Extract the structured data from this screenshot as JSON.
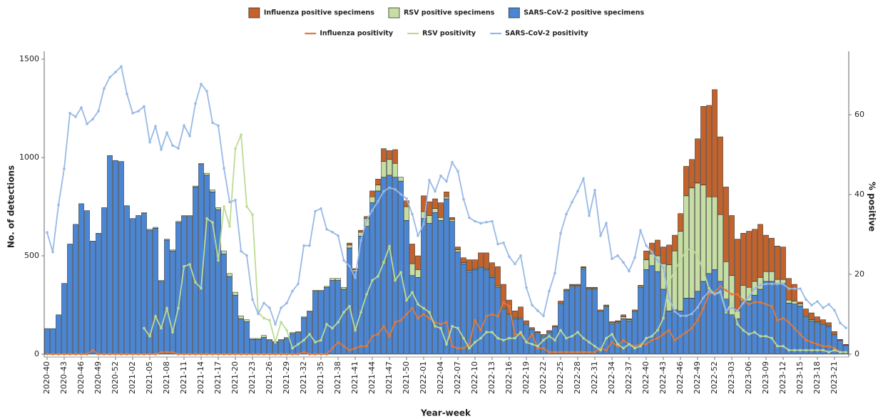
{
  "chart_data": {
    "type": "bar",
    "stacked": true,
    "x_label": "Year-week",
    "y_label": "No. of detections",
    "y2_label": "% positive",
    "ylim": [
      0,
      1540
    ],
    "yticks": [
      0,
      500,
      1000,
      1500
    ],
    "y2lim": [
      0,
      75.9
    ],
    "y2ticks": [
      0,
      20,
      40,
      60
    ],
    "categories": [
      "2020-40",
      null,
      null,
      "2020-43",
      null,
      null,
      "2020-46",
      null,
      null,
      "2020-49",
      null,
      null,
      "2020-52",
      null,
      null,
      "2021-02",
      null,
      null,
      "2021-05",
      null,
      null,
      "2021-08",
      null,
      null,
      "2021-11",
      null,
      null,
      "2021-14",
      null,
      null,
      "2021-17",
      null,
      null,
      "2021-20",
      null,
      null,
      "2021-23",
      null,
      null,
      "2021-26",
      null,
      null,
      "2021-29",
      null,
      null,
      "2021-32",
      null,
      null,
      "2021-35",
      null,
      null,
      "2021-38",
      null,
      null,
      "2021-41",
      null,
      null,
      "2021-44",
      null,
      null,
      "2021-47",
      null,
      null,
      "2021-50",
      null,
      null,
      "2022-01",
      null,
      null,
      "2022-04",
      null,
      null,
      "2022-07",
      null,
      null,
      "2022-10",
      null,
      null,
      "2022-13",
      null,
      null,
      "2022-16",
      null,
      null,
      "2022-19",
      null,
      null,
      "2022-22",
      null,
      null,
      "2022-25",
      null,
      null,
      "2022-28",
      null,
      null,
      "2022-31",
      null,
      null,
      "2022-34",
      null,
      null,
      "2022-37",
      null,
      null,
      "2022-40",
      null,
      null,
      "2022-43",
      null,
      null,
      "2022-46",
      null,
      null,
      "2022-49",
      null,
      null,
      "2022-52",
      null,
      null,
      "2023-03",
      null,
      null,
      "2023-06",
      null,
      null,
      "2023-09",
      null,
      null,
      "2023-12",
      null,
      null,
      "2023-15",
      null,
      null,
      "2023-18",
      null,
      null,
      "2023-21",
      null,
      null
    ],
    "series": [
      {
        "name": "Influenza positive specimens",
        "type": "bar",
        "color": "#c4622b",
        "values": [
          0,
          0,
          0,
          0,
          0,
          0,
          0,
          0,
          0,
          0,
          0,
          0,
          0,
          0,
          0,
          0,
          0,
          0,
          0,
          0,
          0,
          0,
          0,
          0,
          0,
          0,
          0,
          0,
          0,
          0,
          0,
          0,
          0,
          0,
          0,
          0,
          0,
          0,
          0,
          0,
          0,
          0,
          0,
          0,
          0,
          0,
          0,
          0,
          0,
          0,
          0,
          0,
          0,
          10,
          5,
          10,
          10,
          30,
          30,
          65,
          45,
          70,
          0,
          30,
          100,
          70,
          80,
          70,
          50,
          75,
          25,
          10,
          15,
          25,
          55,
          45,
          70,
          80,
          70,
          100,
          120,
          70,
          35,
          55,
          15,
          5,
          5,
          5,
          5,
          5,
          10,
          5,
          5,
          5,
          5,
          5,
          5,
          5,
          5,
          5,
          5,
          10,
          5,
          5,
          5,
          45,
          55,
          80,
          85,
          100,
          80,
          90,
          150,
          145,
          225,
          400,
          465,
          545,
          395,
          380,
          305,
          365,
          265,
          285,
          265,
          270,
          185,
          170,
          170,
          165,
          110,
          85,
          10,
          35,
          35,
          25,
          20,
          15,
          15,
          5,
          5
        ]
      },
      {
        "name": "RSV positive specimens",
        "type": "bar",
        "color": "#c6dea3",
        "values": [
          0,
          0,
          0,
          0,
          0,
          0,
          0,
          0,
          0,
          0,
          0,
          0,
          0,
          0,
          0,
          0,
          0,
          5,
          5,
          5,
          5,
          5,
          5,
          5,
          5,
          5,
          5,
          5,
          10,
          10,
          10,
          15,
          15,
          15,
          15,
          10,
          5,
          5,
          10,
          5,
          5,
          5,
          5,
          5,
          5,
          5,
          5,
          5,
          5,
          5,
          10,
          10,
          10,
          15,
          10,
          20,
          40,
          30,
          30,
          80,
          80,
          70,
          20,
          70,
          60,
          40,
          35,
          40,
          20,
          15,
          10,
          10,
          10,
          5,
          5,
          5,
          5,
          5,
          5,
          5,
          5,
          5,
          5,
          5,
          5,
          5,
          5,
          5,
          5,
          5,
          5,
          5,
          5,
          5,
          5,
          5,
          5,
          5,
          5,
          5,
          5,
          10,
          5,
          5,
          5,
          50,
          60,
          80,
          130,
          235,
          300,
          405,
          520,
          560,
          550,
          490,
          390,
          370,
          340,
          190,
          200,
          40,
          80,
          70,
          70,
          60,
          50,
          50,
          20,
          20,
          15,
          15,
          10,
          5,
          5,
          5,
          5,
          5,
          5,
          0,
          0
        ]
      },
      {
        "name": "SARS-CoV-2 positive specimens",
        "type": "bar",
        "color": "#4a86d4",
        "values": [
          130,
          130,
          200,
          360,
          560,
          660,
          765,
          730,
          575,
          615,
          745,
          1010,
          985,
          980,
          755,
          690,
          705,
          715,
          630,
          640,
          370,
          580,
          525,
          670,
          700,
          700,
          850,
          965,
          910,
          825,
          735,
          510,
          395,
          300,
          180,
          165,
          75,
          75,
          85,
          70,
          60,
          70,
          80,
          105,
          110,
          185,
          215,
          320,
          320,
          340,
          375,
          375,
          330,
          540,
          420,
          600,
          650,
          770,
          830,
          900,
          910,
          900,
          880,
          680,
          400,
          390,
          690,
          665,
          720,
          680,
          790,
          675,
          520,
          460,
          420,
          430,
          440,
          430,
          390,
          340,
          230,
          200,
          180,
          180,
          150,
          125,
          105,
          90,
          110,
          135,
          255,
          320,
          345,
          345,
          435,
          330,
          330,
          215,
          240,
          155,
          160,
          180,
          170,
          215,
          340,
          430,
          450,
          420,
          330,
          220,
          225,
          220,
          285,
          285,
          320,
          370,
          410,
          430,
          370,
          280,
          200,
          180,
          270,
          270,
          300,
          330,
          370,
          370,
          360,
          360,
          260,
          255,
          245,
          190,
          170,
          160,
          150,
          140,
          95,
          70,
          45
        ]
      },
      {
        "name": "Influenza positivity",
        "type": "line",
        "axis": "y2",
        "color": "#e07a3c",
        "values": [
          0,
          0,
          0,
          0,
          0,
          0,
          0,
          0,
          1,
          0,
          0,
          0,
          0,
          0,
          0,
          0,
          0,
          0,
          0,
          0,
          0.5,
          0.5,
          0.5,
          0,
          0,
          0,
          0,
          0,
          0,
          0,
          0,
          0,
          0,
          0,
          0,
          0,
          0,
          0,
          0,
          0,
          0,
          0,
          0,
          0,
          0,
          0.5,
          0,
          0,
          0,
          0,
          1.5,
          3,
          2,
          1,
          1.5,
          2,
          2,
          4.5,
          5,
          7,
          4.5,
          8,
          8.5,
          10,
          11.5,
          9,
          10,
          9,
          8,
          7.5,
          8,
          2,
          1.5,
          1.5,
          2.5,
          8.5,
          6,
          9.5,
          10,
          9.5,
          13,
          12,
          5,
          5,
          3,
          5,
          1.5,
          1.5,
          0.5,
          0.5,
          0.5,
          0.5,
          0.5,
          0.5,
          0.5,
          0.5,
          0.5,
          1.5,
          1,
          3,
          2,
          3.5,
          2.5,
          2,
          2.5,
          2.5,
          3.5,
          4,
          5,
          6,
          3.5,
          4.5,
          5.5,
          6.5,
          8.5,
          11.5,
          15,
          15.5,
          17,
          16,
          15,
          15,
          13.5,
          12.5,
          13,
          13,
          12.5,
          12,
          8.5,
          9,
          8,
          6.5,
          5,
          3.5,
          3,
          2.5,
          2,
          2,
          1.5,
          0.5,
          0.5
        ]
      },
      {
        "name": "RSV positivity",
        "type": "line",
        "axis": "y2",
        "color": "#bcdb95",
        "values": [
          null,
          null,
          null,
          null,
          null,
          null,
          null,
          null,
          null,
          null,
          null,
          null,
          null,
          null,
          null,
          null,
          null,
          6.5,
          4.5,
          9.5,
          6.5,
          11.5,
          5.5,
          11.5,
          22,
          22.5,
          18,
          16.5,
          34,
          33,
          23.5,
          37,
          32,
          51.5,
          55,
          37,
          35,
          10.5,
          9,
          8.5,
          3,
          8,
          6,
          1.5,
          2.5,
          3.5,
          5,
          3,
          3.5,
          7.5,
          6.5,
          8,
          10.5,
          12,
          6,
          10.5,
          15,
          18.5,
          19.5,
          23,
          27,
          18.5,
          20.5,
          13.5,
          15.5,
          12.5,
          11.5,
          10.5,
          7,
          6.5,
          2.5,
          7,
          6.5,
          4,
          1.5,
          3,
          4,
          5.5,
          5.5,
          4,
          3.5,
          4,
          4,
          5.5,
          3,
          2.5,
          2,
          3.5,
          4.5,
          3.5,
          6,
          4,
          4.5,
          5.5,
          4,
          3,
          2,
          1,
          4,
          5,
          2.5,
          1.5,
          2.5,
          1.5,
          2,
          4,
          4.5,
          6,
          9,
          18,
          21,
          23.5,
          26,
          26.5,
          24.5,
          21,
          16.5,
          15,
          15.5,
          10.5,
          13,
          7.5,
          6,
          5,
          5.5,
          4.5,
          4.5,
          4,
          2,
          2,
          1,
          1,
          1,
          1,
          1,
          1,
          1,
          0.5,
          1,
          0.5,
          0.5
        ]
      },
      {
        "name": "SARS-CoV-2 positivity",
        "type": "line",
        "axis": "y2",
        "color": "#98b9e6",
        "values": [
          30.5,
          25.6,
          37.4,
          46.5,
          60.4,
          59.5,
          61.8,
          57.7,
          58.9,
          60.9,
          66.6,
          69.4,
          70.7,
          72.1,
          65.2,
          60.4,
          60.9,
          62.1,
          53.1,
          57.1,
          51.3,
          55.5,
          52.3,
          51.6,
          57.3,
          54.7,
          62.8,
          67.7,
          65.9,
          58.0,
          57.3,
          46.6,
          38.1,
          38.6,
          25.8,
          24.7,
          13.7,
          10.1,
          12.8,
          11.6,
          7.5,
          11.6,
          12.8,
          15.8,
          17.6,
          27.2,
          27.2,
          35.8,
          36.5,
          31.3,
          30.6,
          29.7,
          23.5,
          22.1,
          19.2,
          28.5,
          33.6,
          36.0,
          38.3,
          40.8,
          41.7,
          41.3,
          40.1,
          39.0,
          35.1,
          29.7,
          32.6,
          43.6,
          40.8,
          44.7,
          43.3,
          48.1,
          45.8,
          38.8,
          34.2,
          33.3,
          32.8,
          33.1,
          33.3,
          27.6,
          27.9,
          24.4,
          22.6,
          24.7,
          16.7,
          12.3,
          10.9,
          9.6,
          15.8,
          20.3,
          30.3,
          35.1,
          38.1,
          40.8,
          44.0,
          34.7,
          41.1,
          29.7,
          32.8,
          23.9,
          24.7,
          23.0,
          20.8,
          24.2,
          31.0,
          27.2,
          25.6,
          23.5,
          21.7,
          14.1,
          10.7,
          9.6,
          9.6,
          10.1,
          11.7,
          14.1,
          15.7,
          15.0,
          15.8,
          10.9,
          11.6,
          10.9,
          12.8,
          14.4,
          16.4,
          17.3,
          17.6,
          17.6,
          17.6,
          17.6,
          16.4,
          16.4,
          16.4,
          13.7,
          12.3,
          13.2,
          11.6,
          12.5,
          11.0,
          7.8,
          6.6
        ]
      }
    ]
  }
}
